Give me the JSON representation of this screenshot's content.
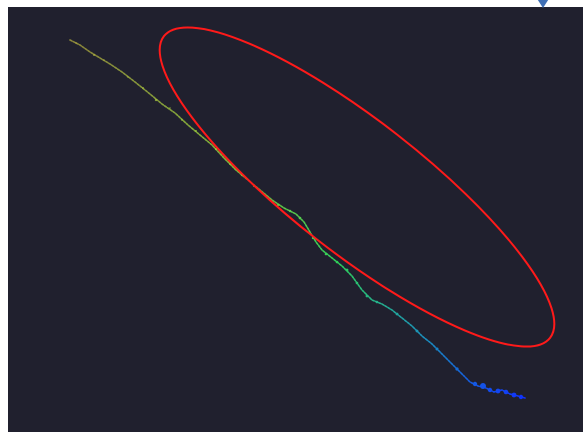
{
  "viewport": {
    "background_color": "#20202e",
    "page_color": "#ffffff"
  },
  "point_cloud": {
    "gradient_colors": [
      "#b8b040",
      "#8fd03c",
      "#2fd05a",
      "#1a8fbf",
      "#1030ff"
    ]
  },
  "highlight": {
    "shape": "ellipse",
    "stroke_color": "#ff1a1a"
  },
  "corner_marker": {
    "icon": "diamond-marker-icon",
    "color": "#3f6fb5"
  }
}
